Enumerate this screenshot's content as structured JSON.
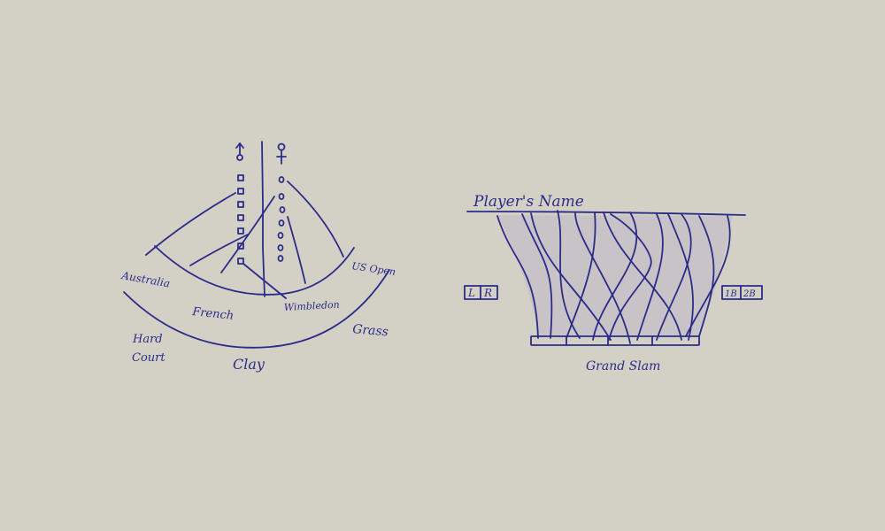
{
  "sketch_left": {
    "symbols": {
      "male": "male-symbol-icon",
      "female": "female-symbol-icon"
    },
    "tournaments": {
      "australia": "Australia",
      "french": "French",
      "wimbledon": "Wimbledon",
      "us_open": "US Open"
    },
    "surfaces": {
      "hard": "Hard",
      "court": "Court",
      "clay": "Clay",
      "grass": "Grass"
    }
  },
  "sketch_right": {
    "players_name": "Player's Name",
    "left_box": {
      "a": "L",
      "b": "R"
    },
    "right_box": {
      "a": "1B",
      "b": "2B"
    },
    "grand_slam": "Grand Slam"
  },
  "colors": {
    "background": "#d3d1c6",
    "ink": "#2c2c88"
  }
}
